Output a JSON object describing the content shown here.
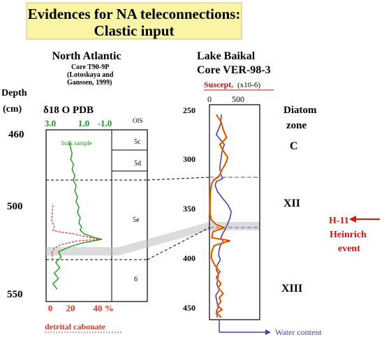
{
  "banner": {
    "line1": "Evidences for NA teleconnections:",
    "line2": "Clastic input",
    "bg": "#faf5a4"
  },
  "left_panel": {
    "title": "North Atlantic",
    "core": "Core T90-9P",
    "ref1": "(Lotoskaya and",
    "ref2": "Ganssen, 1999)",
    "depth_label": "Depth",
    "depth_unit": "(cm)",
    "d18o_label": "δ18 O PDB",
    "ois_label": "OIS",
    "bulk_label": "bulk sample",
    "detrital_label": "detrital cabonate",
    "depth_ticks": [
      "460",
      "500",
      "550"
    ],
    "d18o_ticks": [
      "3.0",
      "1.0",
      "-1.0"
    ],
    "pct_ticks": [
      "0",
      "20",
      "40 %"
    ],
    "ois_stages": [
      "5c",
      "5d",
      "5e",
      "6"
    ]
  },
  "right_panel": {
    "title": "Lake Baikal",
    "core": "Core VER-98-3",
    "suscept_label": "Suscept.",
    "suscept_unit": "(x10-6)",
    "suscept_ticks": [
      "0",
      "500"
    ],
    "depth_ticks": [
      "250",
      "300",
      "350",
      "400",
      "450"
    ],
    "diatom_label1": "Diatom",
    "diatom_label2": "zone",
    "zones": [
      "C",
      "XII",
      "XIII"
    ],
    "water_label": "Water content",
    "heinrich1": "H-11",
    "heinrich2": "Heinrich",
    "heinrich3": "event"
  },
  "colors": {
    "d18o": "#1a9a1a",
    "detrital": "#ee3322",
    "suscept": "#ee1111",
    "suscept_highlight": "#ffb800",
    "water": "#4a3fb0",
    "heinrich": "#dd1111",
    "water_label": "#4a3fb0",
    "band": "#bdbdbd"
  },
  "chart_data": [
    {
      "type": "line",
      "title": "North Atlantic",
      "subtitle": "Core T90-9P",
      "ylabel": "Depth (cm)",
      "ylim": [
        460,
        550
      ],
      "y_reversed": true,
      "series": [
        {
          "name": "bulk sample",
          "x_axis": "δ18 O PDB",
          "xlim": [
            3.0,
            -1.0
          ],
          "x": [
            1.6,
            1.5,
            1.4,
            1.5,
            1.3,
            1.4,
            1.2,
            1.3,
            1.1,
            1.2,
            1.0,
            1.1,
            0.9,
            1.0,
            0.8,
            0.9,
            0.7,
            0.8,
            0.5,
            -0.2,
            -0.8,
            0.6,
            1.5,
            2.4,
            2.2,
            2.6,
            2.3,
            2.7,
            2.4,
            2.8,
            2.5
          ],
          "y": [
            465,
            468,
            471,
            474,
            477,
            480,
            483,
            486,
            489,
            492,
            495,
            498,
            501,
            504,
            507,
            510,
            512,
            514,
            516,
            518,
            519,
            521,
            523,
            526,
            529,
            532,
            535,
            538,
            541,
            544,
            547
          ]
        },
        {
          "name": "detrital cabonate",
          "x_axis": "%",
          "xlim": [
            0,
            40
          ],
          "x": [
            2,
            1,
            3,
            2,
            8,
            18,
            24,
            30,
            38,
            20,
            8,
            3,
            1,
            2
          ],
          "y": [
            500,
            508,
            512,
            514,
            515,
            516,
            517,
            518,
            519,
            520,
            522,
            524,
            527,
            530
          ]
        }
      ],
      "ois_boundaries": [
        472,
        484,
        523
      ],
      "ois_stages": [
        "5c",
        "5d",
        "5e",
        "6"
      ]
    },
    {
      "type": "line",
      "title": "Lake Baikal",
      "subtitle": "Core VER-98-3",
      "ylabel": "Depth",
      "ylim": [
        250,
        460
      ],
      "y_reversed": true,
      "xlabel": "Suscept. (x10-6)",
      "xlim": [
        0,
        500
      ],
      "series": [
        {
          "name": "Suscept.",
          "x": [
            120,
            200,
            240,
            300,
            180,
            250,
            320,
            280,
            220,
            180,
            140,
            80,
            40,
            20,
            15,
            12,
            15,
            30,
            120,
            260,
            60,
            40,
            360,
            80,
            40,
            30,
            60,
            100,
            180,
            120,
            200,
            150,
            240,
            170,
            200,
            140,
            220,
            160,
            120,
            180,
            200
          ],
          "y": [
            255,
            262,
            270,
            278,
            285,
            292,
            298,
            304,
            310,
            315,
            318,
            320,
            324,
            330,
            340,
            350,
            355,
            360,
            365,
            368,
            372,
            378,
            381,
            386,
            392,
            398,
            402,
            406,
            412,
            418,
            424,
            428,
            434,
            438,
            442,
            446,
            450,
            452,
            454,
            456,
            458
          ]
        },
        {
          "name": "Water content",
          "x": [
            210,
            190,
            120,
            260,
            220,
            200,
            180,
            200,
            230,
            120,
            100,
            140,
            220,
            320,
            380,
            360,
            320,
            280,
            230,
            200,
            240,
            190,
            170,
            160,
            190,
            140,
            120,
            160,
            140,
            130,
            170,
            110,
            130,
            150,
            120,
            140
          ],
          "y": [
            255,
            265,
            275,
            285,
            292,
            300,
            308,
            315,
            319,
            322,
            326,
            332,
            338,
            345,
            352,
            358,
            364,
            369,
            374,
            378,
            382,
            386,
            390,
            395,
            400,
            405,
            410,
            415,
            420,
            425,
            430,
            436,
            442,
            448,
            452,
            458
          ]
        }
      ],
      "zones": [
        "C",
        "XII",
        "XIII"
      ],
      "zone_boundaries": [
        320,
        367
      ]
    }
  ]
}
